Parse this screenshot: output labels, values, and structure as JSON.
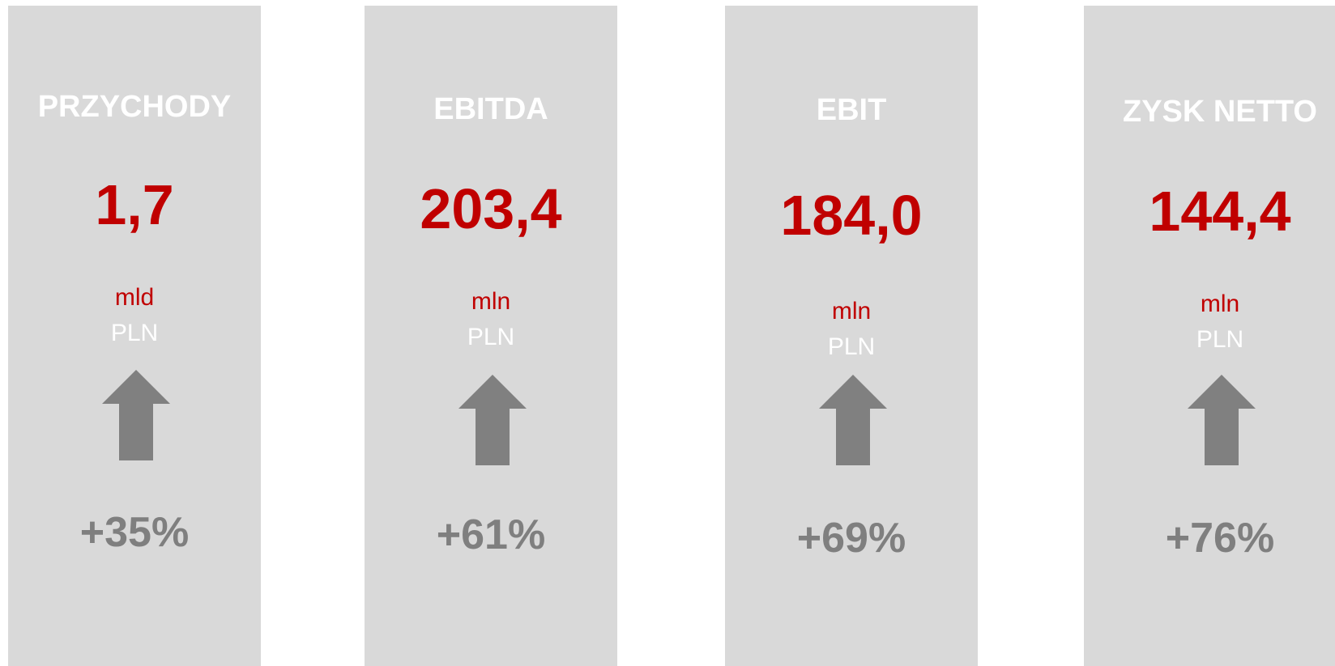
{
  "cards": [
    {
      "title": "PRZYCHODY",
      "value": "1,7",
      "unit": "mld",
      "currency": "PLN",
      "change": "+35%"
    },
    {
      "title": "EBITDA",
      "value": "203,4",
      "unit": "mln",
      "currency": "PLN",
      "change": "+61%"
    },
    {
      "title": "EBIT",
      "value": "184,0",
      "unit": "mln",
      "currency": "PLN",
      "change": "+69%"
    },
    {
      "title": "ZYSK NETTO",
      "value": "144,4",
      "unit": "mln",
      "currency": "PLN",
      "change": "+76%"
    }
  ]
}
